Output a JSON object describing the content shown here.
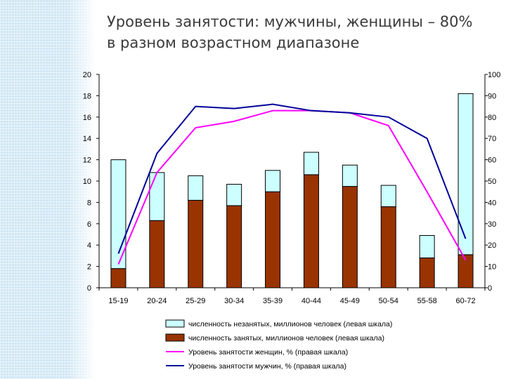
{
  "slide": {
    "title_line1": "Уровень занятости: мужчины, женщины – 80%",
    "title_line2": "в разном возрастном  диапазоне"
  },
  "chart_data": {
    "type": "bar",
    "categories": [
      "15-19",
      "20-24",
      "25-29",
      "30-34",
      "35-39",
      "40-44",
      "45-49",
      "50-54",
      "55-58",
      "60-72"
    ],
    "left_axis": {
      "ylim": [
        0,
        20
      ],
      "ticks": [
        0,
        2,
        4,
        6,
        8,
        10,
        12,
        14,
        16,
        18,
        20
      ]
    },
    "right_axis": {
      "ylim": [
        0,
        100
      ],
      "ticks": [
        0,
        10,
        20,
        30,
        40,
        50,
        60,
        70,
        80,
        90,
        100
      ]
    },
    "series": [
      {
        "name": "численность незанятых, миллионов человек (левая шкала)",
        "kind": "bar-stacked",
        "axis": "left",
        "color": "#ccffff",
        "values": [
          10.2,
          4.5,
          2.3,
          2.0,
          2.0,
          2.1,
          2.0,
          2.0,
          2.1,
          15.1
        ]
      },
      {
        "name": "численность занятых, миллионов человек (левая шкала)",
        "kind": "bar-stacked",
        "axis": "left",
        "color": "#993300",
        "values": [
          1.8,
          6.3,
          8.2,
          7.7,
          9.0,
          10.6,
          9.5,
          7.6,
          2.8,
          3.1
        ]
      },
      {
        "name": "Уровень занятости женщин, % (правая шкала)",
        "kind": "line",
        "axis": "right",
        "color": "#ff00ff",
        "values": [
          11,
          54,
          75,
          78,
          83,
          83,
          82,
          76,
          45,
          13
        ]
      },
      {
        "name": "Уровень занятости мужчин, % (правая шкала)",
        "kind": "line",
        "axis": "right",
        "color": "#000099",
        "values": [
          16,
          63,
          85,
          84,
          86,
          83,
          82,
          80,
          70,
          23
        ]
      }
    ]
  }
}
